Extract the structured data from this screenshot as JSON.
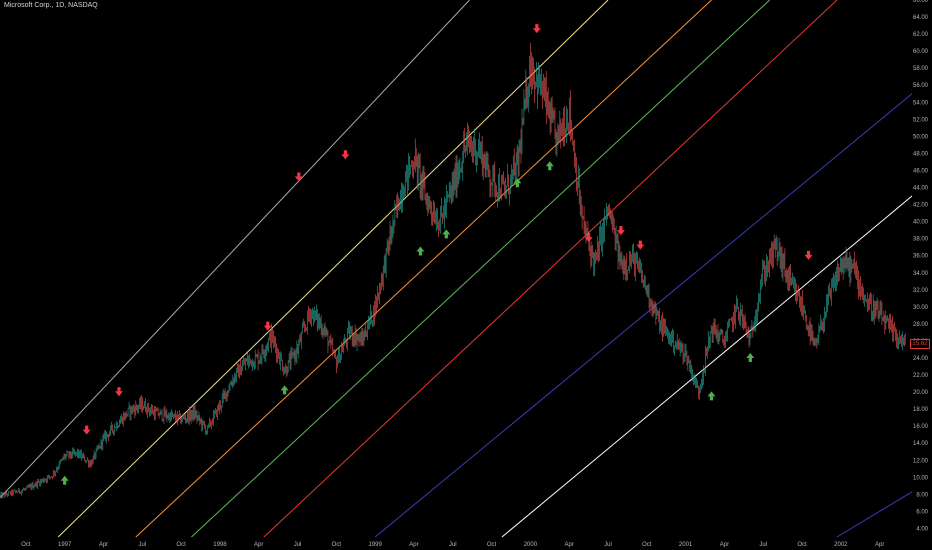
{
  "header": {
    "symbol_title": "Microsoft Corp., 1D, NASDAQ"
  },
  "last_price": "25.62",
  "colors": {
    "background": "#000000",
    "up": "#26a69a",
    "down": "#ef5350",
    "arrow_up": "#4caf50",
    "arrow_down": "#f23645",
    "price_tag": "#e23636"
  },
  "chart_data": {
    "type": "candlestick",
    "title": "Microsoft Corp., 1D, NASDAQ",
    "xlabel": "",
    "ylabel": "",
    "x_tick_labels": [
      "Oct",
      "1997",
      "Apr",
      "Jul",
      "Oct",
      "1998",
      "Apr",
      "Jul",
      "Oct",
      "1999",
      "Apr",
      "Jul",
      "Oct",
      "2000",
      "Apr",
      "Jul",
      "Oct",
      "2001",
      "Apr",
      "Jul",
      "Oct",
      "2002",
      "Apr"
    ],
    "x_tick_months": [
      0,
      3,
      6,
      9,
      12,
      15,
      18,
      21,
      24,
      27,
      30,
      33,
      36,
      39,
      42,
      45,
      48,
      51,
      54,
      57,
      60,
      63,
      66
    ],
    "x_range_months": [
      -2,
      68.5
    ],
    "y_ticks": [
      4,
      6,
      8,
      10,
      12,
      14,
      16,
      18,
      20,
      22,
      24,
      26,
      28,
      30,
      32,
      34,
      36,
      38,
      40,
      42,
      44,
      46,
      48,
      50,
      52,
      54,
      56,
      58,
      60,
      62,
      64,
      66
    ],
    "ylim": [
      3,
      66
    ],
    "grid": false,
    "price_path": [
      [
        -2,
        7.8
      ],
      [
        0,
        8.6
      ],
      [
        2,
        10.2
      ],
      [
        3,
        12.5
      ],
      [
        4,
        12.8
      ],
      [
        5,
        11.6
      ],
      [
        6,
        14.5
      ],
      [
        7,
        16.2
      ],
      [
        8,
        17.8
      ],
      [
        9,
        18.5
      ],
      [
        10,
        17.5
      ],
      [
        11,
        17.2
      ],
      [
        12,
        16.8
      ],
      [
        13,
        17.5
      ],
      [
        14,
        15.5
      ],
      [
        15,
        18.5
      ],
      [
        16,
        21.5
      ],
      [
        17,
        23.5
      ],
      [
        18,
        24.0
      ],
      [
        19,
        26.5
      ],
      [
        20,
        22.5
      ],
      [
        21,
        25.0
      ],
      [
        22,
        29.5
      ],
      [
        23,
        27.5
      ],
      [
        24,
        23.5
      ],
      [
        25,
        27.0
      ],
      [
        26,
        26.0
      ],
      [
        27,
        30.0
      ],
      [
        28,
        37.0
      ],
      [
        29,
        43.5
      ],
      [
        30,
        47.5
      ],
      [
        31,
        42.5
      ],
      [
        32,
        40.0
      ],
      [
        33,
        44.0
      ],
      [
        34,
        49.0
      ],
      [
        35,
        48.5
      ],
      [
        36,
        45.0
      ],
      [
        37,
        43.5
      ],
      [
        38,
        46.5
      ],
      [
        39,
        58.5
      ],
      [
        40,
        55.0
      ],
      [
        41,
        49.5
      ],
      [
        42,
        53.0
      ],
      [
        43,
        40.0
      ],
      [
        44,
        35.0
      ],
      [
        45,
        41.5
      ],
      [
        46,
        35.0
      ],
      [
        47,
        35.5
      ],
      [
        48,
        32.0
      ],
      [
        49,
        28.0
      ],
      [
        50,
        26.0
      ],
      [
        51,
        24.5
      ],
      [
        52,
        20.0
      ],
      [
        53,
        27.5
      ],
      [
        54,
        26.0
      ],
      [
        55,
        30.0
      ],
      [
        56,
        26.0
      ],
      [
        57,
        34.0
      ],
      [
        58,
        37.0
      ],
      [
        59,
        33.0
      ],
      [
        60,
        30.0
      ],
      [
        61,
        25.0
      ],
      [
        62,
        30.5
      ],
      [
        63,
        35.0
      ],
      [
        64,
        34.5
      ],
      [
        65,
        30.5
      ],
      [
        66,
        29.0
      ],
      [
        67,
        27.0
      ],
      [
        68,
        25.6
      ]
    ],
    "channel_lines": [
      {
        "color": "#a9a9a9",
        "points": [
          [
            -2,
            7.6
          ],
          [
            34.3,
            66
          ]
        ]
      },
      {
        "color": "#f5e38b",
        "points": [
          [
            2.5,
            3
          ],
          [
            45,
            66
          ]
        ]
      },
      {
        "color": "#f7933b",
        "points": [
          [
            8.5,
            3
          ],
          [
            53,
            66
          ]
        ]
      },
      {
        "color": "#5fb85a",
        "points": [
          [
            12.8,
            3
          ],
          [
            57.5,
            66
          ]
        ]
      },
      {
        "color": "#e53935",
        "points": [
          [
            18.4,
            3
          ],
          [
            62.7,
            66
          ]
        ]
      },
      {
        "color": "#3b3db5",
        "points": [
          [
            27,
            3
          ],
          [
            68.5,
            55
          ]
        ]
      },
      {
        "color": "#ffffff",
        "points": [
          [
            36.8,
            3
          ],
          [
            68.5,
            43
          ]
        ]
      },
      {
        "color": "#3b3db5",
        "points": [
          [
            62.7,
            3
          ],
          [
            68.5,
            8.3
          ]
        ]
      }
    ],
    "arrows_up": [
      [
        3,
        9.6
      ],
      [
        20,
        20.2
      ],
      [
        30.5,
        36.5
      ],
      [
        32.5,
        38.5
      ],
      [
        38,
        44.5
      ],
      [
        40.5,
        46.5
      ],
      [
        53,
        19.5
      ],
      [
        56,
        24.0
      ]
    ],
    "arrows_down": [
      [
        4.7,
        15.6
      ],
      [
        7.2,
        20.1
      ],
      [
        18.7,
        27.8
      ],
      [
        21.1,
        45.3
      ],
      [
        24.7,
        47.9
      ],
      [
        39.5,
        62.7
      ],
      [
        43.5,
        38.2
      ],
      [
        46,
        39.0
      ],
      [
        47.5,
        37.3
      ],
      [
        60.5,
        36.1
      ]
    ]
  }
}
